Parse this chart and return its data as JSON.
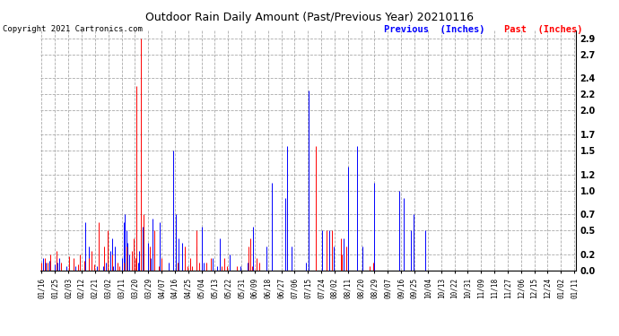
{
  "title": "Outdoor Rain Daily Amount (Past/Previous Year) 20210116",
  "copyright": "Copyright 2021 Cartronics.com",
  "legend_previous": "Previous  (Inches)",
  "legend_past": "Past  (Inches)",
  "color_previous": "#0000FF",
  "color_past": "#FF0000",
  "background_color": "#FFFFFF",
  "grid_color": "#AAAAAA",
  "ylim": [
    0.0,
    3.0
  ],
  "yticks": [
    0.0,
    0.2,
    0.5,
    0.7,
    1.0,
    1.2,
    1.5,
    1.7,
    2.0,
    2.2,
    2.4,
    2.7,
    2.9
  ],
  "xtick_labels": [
    "01/16",
    "01/25",
    "02/03",
    "02/12",
    "02/21",
    "03/02",
    "03/11",
    "03/20",
    "03/29",
    "04/07",
    "04/16",
    "04/25",
    "05/04",
    "05/13",
    "05/22",
    "05/31",
    "06/09",
    "06/18",
    "06/27",
    "07/06",
    "07/15",
    "07/24",
    "08/02",
    "08/11",
    "08/20",
    "08/29",
    "09/07",
    "09/16",
    "09/25",
    "10/04",
    "10/13",
    "10/22",
    "10/31",
    "11/09",
    "11/18",
    "11/27",
    "12/06",
    "12/15",
    "12/24",
    "01/02",
    "01/11"
  ],
  "num_days": 366,
  "previous_year_data": [
    0.05,
    0.15,
    0.0,
    0.1,
    0.0,
    0.12,
    0.0,
    0.0,
    0.0,
    0.08,
    0.0,
    0.1,
    0.15,
    0.0,
    0.0,
    0.0,
    0.0,
    0.05,
    0.0,
    0.05,
    0.0,
    0.0,
    0.1,
    0.05,
    0.0,
    0.0,
    0.0,
    0.0,
    0.0,
    0.0,
    0.6,
    0.0,
    0.3,
    0.0,
    0.0,
    0.0,
    0.0,
    0.0,
    0.05,
    0.0,
    0.0,
    0.0,
    0.05,
    0.0,
    0.1,
    0.0,
    0.0,
    0.25,
    0.4,
    0.05,
    0.3,
    0.0,
    0.0,
    0.0,
    0.0,
    0.15,
    0.6,
    0.7,
    0.5,
    0.35,
    0.2,
    0.0,
    0.05,
    0.15,
    0.0,
    0.5,
    0.1,
    0.25,
    0.0,
    0.55,
    0.5,
    0.0,
    0.0,
    0.35,
    0.0,
    0.15,
    0.65,
    0.0,
    0.0,
    0.0,
    0.0,
    0.6,
    0.0,
    0.0,
    0.0,
    0.0,
    0.0,
    0.1,
    0.0,
    0.0,
    1.5,
    0.0,
    0.7,
    0.0,
    0.4,
    0.0,
    0.35,
    0.0,
    0.0,
    0.0,
    0.0,
    0.0,
    0.1,
    0.0,
    0.0,
    0.0,
    0.3,
    0.0,
    0.0,
    0.0,
    0.55,
    0.1,
    0.0,
    0.0,
    0.0,
    0.0,
    0.0,
    0.15,
    0.0,
    0.0,
    0.05,
    0.0,
    0.4,
    0.0,
    0.0,
    0.0,
    0.0,
    0.0,
    0.0,
    0.2,
    0.0,
    0.0,
    0.0,
    0.0,
    0.0,
    0.0,
    0.05,
    0.0,
    0.0,
    0.0,
    0.0,
    0.1,
    0.0,
    0.0,
    0.0,
    0.55,
    0.0,
    0.0,
    0.0,
    0.0,
    0.0,
    0.0,
    0.0,
    0.0,
    0.3,
    0.0,
    0.0,
    0.0,
    1.1,
    0.0,
    0.0,
    0.0,
    0.0,
    0.0,
    0.0,
    0.0,
    0.0,
    0.9,
    1.55,
    0.0,
    0.0,
    0.3,
    0.0,
    0.0,
    0.0,
    0.0,
    0.0,
    0.0,
    0.0,
    0.0,
    0.0,
    0.1,
    0.0,
    2.25,
    0.0,
    0.0,
    0.0,
    0.0,
    0.0,
    0.0,
    0.0,
    0.0,
    0.5,
    0.0,
    0.0,
    0.0,
    0.0,
    0.5,
    0.0,
    0.0,
    0.3,
    0.0,
    0.0,
    0.0,
    0.0,
    0.0,
    0.0,
    0.4,
    0.0,
    0.0,
    1.3,
    0.0,
    0.0,
    0.0,
    0.0,
    0.0,
    1.55,
    0.0,
    0.0,
    0.0,
    0.3,
    0.0,
    0.0,
    0.0,
    0.0,
    0.0,
    0.0,
    0.0,
    1.1,
    0.0,
    0.0,
    0.0,
    0.0,
    0.0,
    0.0,
    0.0,
    0.0,
    0.0,
    0.0,
    0.0,
    0.0,
    0.0,
    0.0,
    0.0,
    0.0,
    1.0,
    0.0,
    0.0,
    0.9,
    0.0,
    0.0,
    0.0,
    0.0,
    0.5,
    0.0,
    0.7,
    0.0,
    0.0,
    0.0,
    0.0,
    0.0,
    0.0,
    0.0,
    0.5,
    0.0,
    0.0,
    0.0,
    0.0,
    0.0,
    0.0,
    0.0,
    0.0,
    0.0,
    0.0,
    0.0,
    0.0,
    0.0,
    0.0,
    0.0,
    0.0,
    0.0,
    0.0,
    0.0,
    0.0,
    0.0,
    0.0,
    0.0,
    0.0,
    0.0,
    0.0,
    0.0,
    0.0,
    0.0,
    0.0,
    0.0,
    0.0,
    0.0,
    0.0,
    0.0,
    0.0,
    0.0,
    0.0,
    0.0,
    0.0,
    0.0,
    0.0,
    0.0,
    0.0,
    0.0,
    0.0,
    0.0,
    0.0,
    0.0,
    0.0,
    0.0,
    0.0,
    0.0,
    0.0,
    0.0,
    0.0,
    0.0,
    0.0,
    0.0,
    0.0,
    0.0,
    0.0,
    0.0,
    0.0,
    0.0,
    0.0,
    0.0,
    0.0,
    0.0,
    0.0,
    0.0,
    0.0,
    0.0,
    0.0,
    0.0,
    0.0,
    0.0,
    0.0,
    0.0,
    0.0,
    0.0,
    0.0,
    0.0,
    0.0,
    0.0,
    0.0,
    0.0,
    0.0,
    0.0,
    0.0,
    0.0,
    0.0,
    0.0,
    0.0,
    0.0,
    0.0,
    0.0,
    0.0,
    0.0,
    0.0,
    0.0,
    0.0
  ],
  "past_year_data": [
    0.1,
    0.0,
    0.15,
    0.0,
    0.1,
    0.0,
    0.2,
    0.0,
    0.0,
    0.0,
    0.25,
    0.0,
    0.0,
    0.1,
    0.0,
    0.0,
    0.0,
    0.0,
    0.0,
    0.18,
    0.0,
    0.0,
    0.15,
    0.0,
    0.0,
    0.08,
    0.2,
    0.0,
    0.0,
    0.12,
    0.0,
    0.0,
    0.15,
    0.0,
    0.25,
    0.0,
    0.08,
    0.0,
    0.0,
    0.6,
    0.0,
    0.0,
    0.0,
    0.3,
    0.0,
    0.5,
    0.0,
    0.0,
    0.2,
    0.0,
    0.0,
    0.0,
    0.1,
    0.05,
    0.0,
    0.0,
    0.1,
    0.0,
    0.3,
    0.0,
    0.0,
    0.0,
    0.25,
    0.4,
    0.15,
    2.3,
    0.0,
    0.0,
    2.9,
    0.0,
    0.7,
    0.0,
    0.0,
    0.0,
    0.3,
    0.0,
    0.0,
    0.5,
    0.0,
    0.0,
    0.05,
    0.0,
    0.15,
    0.0,
    0.0,
    0.0,
    0.0,
    0.0,
    0.0,
    0.0,
    0.0,
    0.0,
    0.0,
    0.1,
    0.0,
    0.0,
    0.0,
    0.0,
    0.3,
    0.0,
    0.05,
    0.0,
    0.15,
    0.05,
    0.0,
    0.0,
    0.5,
    0.0,
    0.1,
    0.0,
    0.0,
    0.0,
    0.0,
    0.1,
    0.0,
    0.0,
    0.15,
    0.0,
    0.0,
    0.0,
    0.0,
    0.0,
    0.0,
    0.05,
    0.0,
    0.15,
    0.0,
    0.05,
    0.0,
    0.0,
    0.0,
    0.0,
    0.0,
    0.0,
    0.05,
    0.0,
    0.0,
    0.0,
    0.0,
    0.0,
    0.0,
    0.0,
    0.3,
    0.4,
    0.05,
    0.0,
    0.0,
    0.15,
    0.0,
    0.1,
    0.0,
    0.0,
    0.0,
    0.0,
    0.0,
    0.0,
    0.0,
    0.0,
    0.0,
    0.0,
    0.0,
    0.0,
    0.0,
    0.0,
    0.0,
    0.0,
    0.0,
    0.0,
    0.0,
    0.0,
    0.0,
    0.0,
    0.0,
    0.0,
    0.0,
    0.0,
    0.0,
    0.0,
    0.0,
    0.0,
    0.0,
    0.0,
    0.0,
    0.0,
    0.0,
    0.0,
    0.0,
    0.0,
    1.55,
    0.0,
    0.0,
    0.0,
    0.0,
    0.0,
    0.0,
    0.5,
    0.0,
    0.0,
    0.0,
    0.5,
    0.0,
    0.0,
    0.0,
    0.0,
    0.0,
    0.4,
    0.2,
    0.0,
    0.0,
    0.3,
    0.0,
    0.0,
    0.0,
    0.0,
    0.0,
    0.0,
    0.0,
    0.0,
    0.0,
    0.0,
    0.0,
    0.0,
    0.0,
    0.0,
    0.0,
    0.05,
    0.0,
    0.1,
    0.0,
    0.0,
    0.0,
    0.0,
    0.0,
    0.0,
    0.0,
    0.0,
    0.0,
    0.0,
    0.0,
    0.0,
    0.0,
    0.0,
    0.0,
    0.0,
    0.0,
    0.0,
    0.0,
    0.0,
    0.0,
    0.0,
    0.0,
    0.0,
    0.0,
    0.0,
    0.0,
    0.0,
    0.0,
    0.0,
    0.0,
    0.0,
    0.0,
    0.0,
    0.0,
    0.0,
    0.0,
    0.0,
    0.0,
    0.0,
    0.0,
    0.0,
    0.0,
    0.0,
    0.0,
    0.0,
    0.0,
    0.0,
    0.0,
    0.0,
    0.0,
    0.0,
    0.0,
    0.0,
    0.0,
    0.0,
    0.0,
    0.0,
    0.0,
    0.0,
    0.0,
    0.0,
    0.0,
    0.0,
    0.0,
    0.0,
    0.0,
    0.0,
    0.0,
    0.0,
    0.0,
    0.0,
    0.0,
    0.0,
    0.0,
    0.0,
    0.0,
    0.0,
    0.0,
    0.0,
    0.0,
    0.0,
    0.0,
    0.0,
    0.0,
    0.0,
    0.0,
    0.0,
    0.0,
    0.0,
    0.0,
    0.0,
    0.0,
    0.0,
    0.0,
    0.0,
    0.0,
    0.0,
    0.0,
    0.0,
    0.0,
    0.0,
    0.0,
    0.0,
    0.0,
    0.0,
    0.0,
    0.0,
    0.0,
    0.0,
    0.0,
    0.0,
    0.0,
    0.0,
    0.0,
    0.0,
    0.0,
    0.0,
    0.0,
    0.0,
    0.0,
    0.0,
    0.0,
    0.0,
    0.0,
    0.0,
    0.0,
    0.0,
    0.0,
    0.0,
    0.0,
    0.0,
    0.0,
    0.0,
    0.0,
    0.0,
    0.0,
    0.0
  ]
}
